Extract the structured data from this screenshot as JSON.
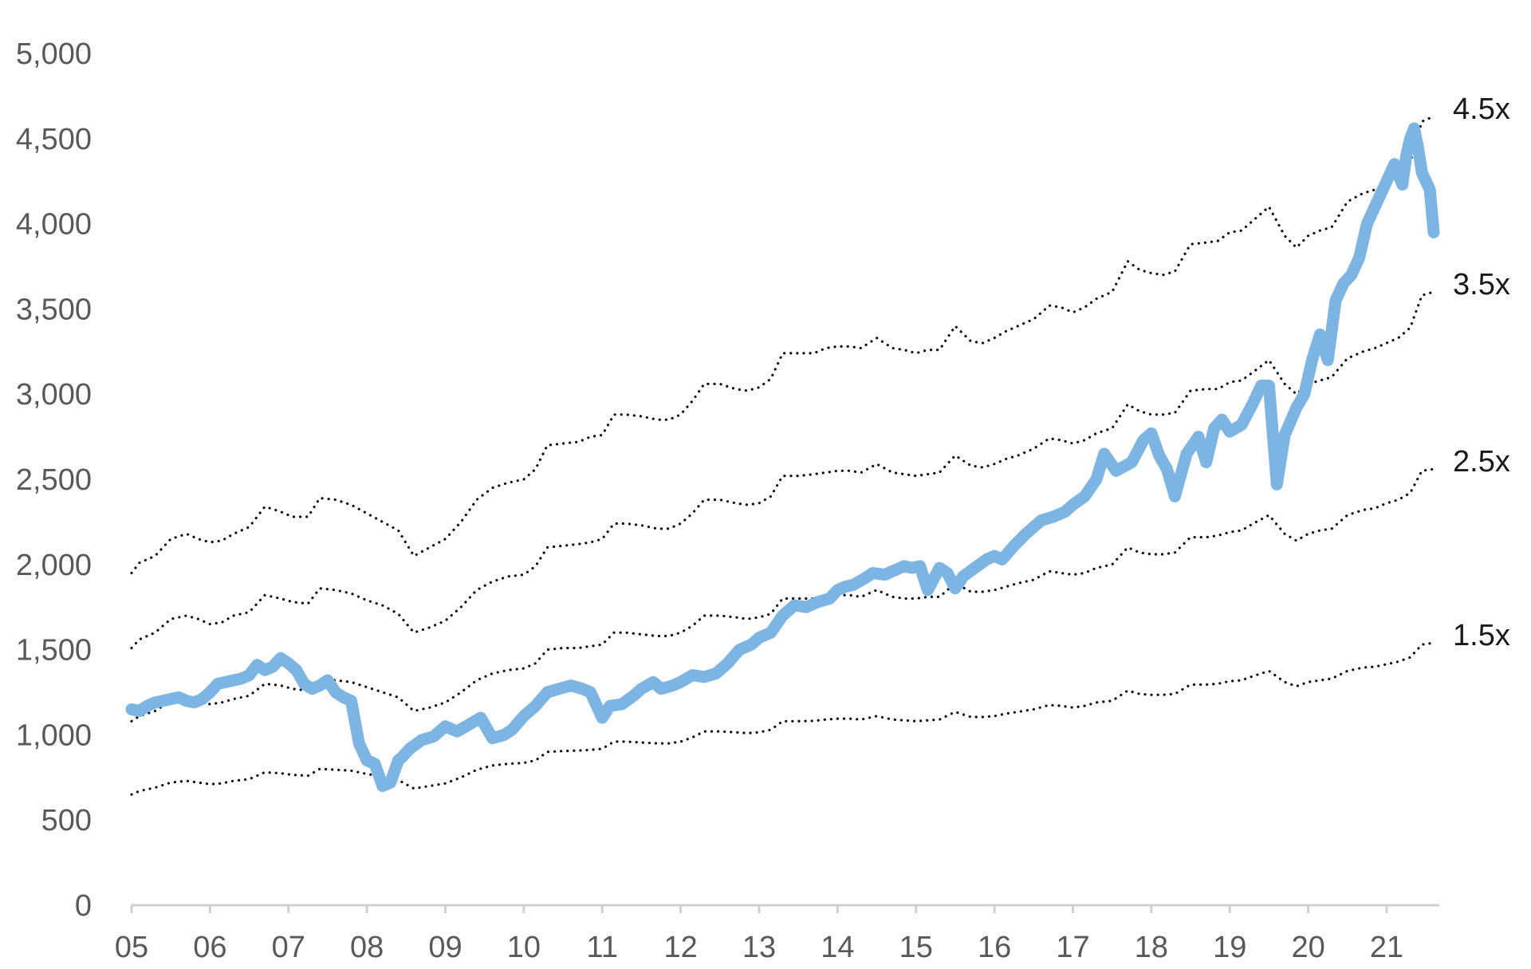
{
  "chart_data": {
    "type": "line",
    "title": "",
    "xlabel": "",
    "ylabel": "",
    "xlim": [
      2005.0,
      2021.6
    ],
    "ylim": [
      0,
      5000
    ],
    "y_ticks": [
      "0",
      "500",
      "1,000",
      "1,500",
      "2,000",
      "2,500",
      "3,000",
      "3,500",
      "4,000",
      "4,500",
      "5,000"
    ],
    "y_tick_values": [
      0,
      500,
      1000,
      1500,
      2000,
      2500,
      3000,
      3500,
      4000,
      4500,
      5000
    ],
    "x_ticks": [
      "05",
      "06",
      "07",
      "08",
      "09",
      "10",
      "11",
      "12",
      "13",
      "14",
      "15",
      "16",
      "17",
      "18",
      "19",
      "20",
      "21"
    ],
    "x_tick_values": [
      2005,
      2006,
      2007,
      2008,
      2009,
      2010,
      2011,
      2012,
      2013,
      2014,
      2015,
      2016,
      2017,
      2018,
      2019,
      2020,
      2021
    ],
    "grid": false,
    "colors": {
      "main": "#7cb5e3",
      "bands": "#111111",
      "axis": "#d0d0d0"
    },
    "main_series": {
      "x": [
        2005.0,
        2005.1,
        2005.2,
        2005.3,
        2005.4,
        2005.5,
        2005.6,
        2005.7,
        2005.8,
        2005.9,
        2006.0,
        2006.1,
        2006.2,
        2006.3,
        2006.4,
        2006.5,
        2006.6,
        2006.7,
        2006.8,
        2006.9,
        2007.0,
        2007.1,
        2007.2,
        2007.3,
        2007.4,
        2007.5,
        2007.6,
        2007.7,
        2007.8,
        2007.9,
        2008.0,
        2008.1,
        2008.2,
        2008.3,
        2008.4,
        2008.45,
        2008.55,
        2008.7,
        2008.85,
        2009.0,
        2009.15,
        2009.3,
        2009.45,
        2009.6,
        2009.75,
        2009.85,
        2010.0,
        2010.15,
        2010.3,
        2010.45,
        2010.6,
        2010.75,
        2010.85,
        2011.0,
        2011.1,
        2011.25,
        2011.4,
        2011.5,
        2011.65,
        2011.75,
        2011.9,
        2012.0,
        2012.15,
        2012.3,
        2012.45,
        2012.6,
        2012.75,
        2012.9,
        2013.0,
        2013.15,
        2013.3,
        2013.45,
        2013.6,
        2013.75,
        2013.9,
        2014.0,
        2014.1,
        2014.2,
        2014.35,
        2014.45,
        2014.6,
        2014.7,
        2014.85,
        2014.95,
        2015.05,
        2015.15,
        2015.3,
        2015.4,
        2015.5,
        2015.6,
        2015.75,
        2015.9,
        2016.0,
        2016.1,
        2016.25,
        2016.4,
        2016.6,
        2016.75,
        2016.9,
        2017.0,
        2017.15,
        2017.3,
        2017.4,
        2017.55,
        2017.75,
        2017.9,
        2018.0,
        2018.1,
        2018.2,
        2018.3,
        2018.45,
        2018.6,
        2018.7,
        2018.8,
        2018.9,
        2019.0,
        2019.15,
        2019.3,
        2019.4,
        2019.5,
        2019.6,
        2019.7,
        2019.85,
        2019.95,
        2020.05,
        2020.15,
        2020.25,
        2020.35,
        2020.45,
        2020.55,
        2020.65,
        2020.75,
        2020.85,
        2020.95,
        2021.05,
        2021.1,
        2021.2,
        2021.25,
        2021.3,
        2021.35,
        2021.4,
        2021.45,
        2021.5,
        2021.55,
        2021.6
      ],
      "y": [
        1150,
        1140,
        1170,
        1190,
        1200,
        1210,
        1220,
        1200,
        1190,
        1210,
        1250,
        1300,
        1310,
        1320,
        1330,
        1350,
        1410,
        1380,
        1400,
        1450,
        1420,
        1380,
        1300,
        1270,
        1290,
        1320,
        1250,
        1220,
        1200,
        950,
        850,
        830,
        700,
        720,
        850,
        870,
        920,
        970,
        990,
        1050,
        1020,
        1060,
        1100,
        980,
        1000,
        1030,
        1110,
        1170,
        1250,
        1270,
        1290,
        1270,
        1250,
        1100,
        1170,
        1180,
        1230,
        1270,
        1310,
        1270,
        1290,
        1310,
        1350,
        1340,
        1360,
        1420,
        1500,
        1530,
        1570,
        1600,
        1700,
        1760,
        1750,
        1780,
        1800,
        1850,
        1870,
        1880,
        1920,
        1950,
        1940,
        1960,
        1990,
        1980,
        1990,
        1850,
        1980,
        1950,
        1860,
        1930,
        1980,
        2030,
        2050,
        2030,
        2110,
        2180,
        2260,
        2280,
        2310,
        2350,
        2400,
        2500,
        2650,
        2550,
        2600,
        2730,
        2770,
        2640,
        2560,
        2400,
        2650,
        2750,
        2600,
        2800,
        2850,
        2780,
        2820,
        2950,
        3050,
        3050,
        2470,
        2760,
        2920,
        3000,
        3200,
        3350,
        3200,
        3550,
        3650,
        3700,
        3800,
        4000,
        4100,
        4200,
        4300,
        4350,
        4230,
        4400,
        4500,
        4560,
        4450,
        4300,
        4250,
        4200,
        3950
      ]
    },
    "bands": [
      {
        "label": "4.5x",
        "x": [
          2005.0,
          2005.1,
          2005.3,
          2005.5,
          2005.7,
          2005.85,
          2006.0,
          2006.15,
          2006.3,
          2006.5,
          2006.7,
          2006.9,
          2007.05,
          2007.25,
          2007.4,
          2007.6,
          2007.8,
          2008.0,
          2008.2,
          2008.4,
          2008.6,
          2008.8,
          2009.0,
          2009.2,
          2009.4,
          2009.6,
          2009.8,
          2010.0,
          2010.15,
          2010.3,
          2010.5,
          2010.7,
          2010.85,
          2011.0,
          2011.15,
          2011.3,
          2011.5,
          2011.7,
          2011.85,
          2012.0,
          2012.15,
          2012.3,
          2012.5,
          2012.7,
          2012.85,
          2013.0,
          2013.15,
          2013.3,
          2013.5,
          2013.7,
          2013.85,
          2014.0,
          2014.15,
          2014.3,
          2014.5,
          2014.7,
          2014.85,
          2015.0,
          2015.15,
          2015.3,
          2015.5,
          2015.7,
          2015.85,
          2016.0,
          2016.15,
          2016.3,
          2016.5,
          2016.7,
          2016.85,
          2017.0,
          2017.15,
          2017.3,
          2017.5,
          2017.7,
          2017.85,
          2018.0,
          2018.15,
          2018.3,
          2018.5,
          2018.7,
          2018.85,
          2019.0,
          2019.15,
          2019.3,
          2019.5,
          2019.7,
          2019.85,
          2020.0,
          2020.15,
          2020.3,
          2020.5,
          2020.7,
          2020.85,
          2021.0,
          2021.15,
          2021.3,
          2021.45,
          2021.6
        ],
        "y": [
          1950,
          2010,
          2050,
          2150,
          2180,
          2150,
          2130,
          2140,
          2180,
          2220,
          2340,
          2310,
          2280,
          2280,
          2390,
          2380,
          2350,
          2300,
          2250,
          2200,
          2050,
          2100,
          2150,
          2250,
          2380,
          2450,
          2480,
          2500,
          2560,
          2700,
          2710,
          2720,
          2750,
          2760,
          2880,
          2880,
          2870,
          2850,
          2850,
          2880,
          2960,
          3060,
          3060,
          3030,
          3020,
          3040,
          3090,
          3240,
          3240,
          3240,
          3270,
          3280,
          3280,
          3270,
          3330,
          3270,
          3260,
          3240,
          3260,
          3260,
          3400,
          3310,
          3300,
          3330,
          3370,
          3400,
          3440,
          3520,
          3510,
          3480,
          3510,
          3560,
          3600,
          3780,
          3730,
          3710,
          3700,
          3720,
          3880,
          3890,
          3900,
          3950,
          3960,
          4020,
          4100,
          3930,
          3860,
          3930,
          3960,
          3980,
          4130,
          4180,
          4200,
          4240,
          4280,
          4360,
          4600,
          4630
        ]
      },
      {
        "label": "3.5x",
        "x": [
          2005.0,
          2005.1,
          2005.3,
          2005.5,
          2005.7,
          2005.85,
          2006.0,
          2006.15,
          2006.3,
          2006.5,
          2006.7,
          2006.9,
          2007.05,
          2007.25,
          2007.4,
          2007.6,
          2007.8,
          2008.0,
          2008.2,
          2008.4,
          2008.6,
          2008.8,
          2009.0,
          2009.2,
          2009.4,
          2009.6,
          2009.8,
          2010.0,
          2010.15,
          2010.3,
          2010.5,
          2010.7,
          2010.85,
          2011.0,
          2011.15,
          2011.3,
          2011.5,
          2011.7,
          2011.85,
          2012.0,
          2012.15,
          2012.3,
          2012.5,
          2012.7,
          2012.85,
          2013.0,
          2013.15,
          2013.3,
          2013.5,
          2013.7,
          2013.85,
          2014.0,
          2014.15,
          2014.3,
          2014.5,
          2014.7,
          2014.85,
          2015.0,
          2015.15,
          2015.3,
          2015.5,
          2015.7,
          2015.85,
          2016.0,
          2016.15,
          2016.3,
          2016.5,
          2016.7,
          2016.85,
          2017.0,
          2017.15,
          2017.3,
          2017.5,
          2017.7,
          2017.85,
          2018.0,
          2018.15,
          2018.3,
          2018.5,
          2018.7,
          2018.85,
          2019.0,
          2019.15,
          2019.3,
          2019.5,
          2019.7,
          2019.85,
          2020.0,
          2020.15,
          2020.3,
          2020.5,
          2020.7,
          2020.85,
          2021.0,
          2021.15,
          2021.3,
          2021.45,
          2021.6
        ],
        "y": [
          1510,
          1560,
          1600,
          1680,
          1700,
          1680,
          1650,
          1660,
          1700,
          1720,
          1820,
          1800,
          1780,
          1770,
          1860,
          1850,
          1830,
          1790,
          1760,
          1710,
          1600,
          1630,
          1670,
          1750,
          1850,
          1900,
          1930,
          1940,
          1990,
          2100,
          2110,
          2120,
          2130,
          2150,
          2240,
          2240,
          2230,
          2210,
          2210,
          2240,
          2300,
          2380,
          2380,
          2360,
          2350,
          2360,
          2400,
          2520,
          2520,
          2530,
          2540,
          2550,
          2550,
          2540,
          2590,
          2540,
          2530,
          2520,
          2530,
          2540,
          2640,
          2580,
          2570,
          2590,
          2620,
          2640,
          2680,
          2740,
          2730,
          2710,
          2730,
          2770,
          2800,
          2940,
          2900,
          2880,
          2880,
          2890,
          3020,
          3030,
          3030,
          3070,
          3080,
          3130,
          3200,
          3060,
          3000,
          3060,
          3080,
          3100,
          3210,
          3250,
          3270,
          3300,
          3330,
          3390,
          3580,
          3600
        ]
      },
      {
        "label": "2.5x",
        "x": [
          2005.0,
          2005.1,
          2005.3,
          2005.5,
          2005.7,
          2005.85,
          2006.0,
          2006.15,
          2006.3,
          2006.5,
          2006.7,
          2006.9,
          2007.05,
          2007.25,
          2007.4,
          2007.6,
          2007.8,
          2008.0,
          2008.2,
          2008.4,
          2008.6,
          2008.8,
          2009.0,
          2009.2,
          2009.4,
          2009.6,
          2009.8,
          2010.0,
          2010.15,
          2010.3,
          2010.5,
          2010.7,
          2010.85,
          2011.0,
          2011.15,
          2011.3,
          2011.5,
          2011.7,
          2011.85,
          2012.0,
          2012.15,
          2012.3,
          2012.5,
          2012.7,
          2012.85,
          2013.0,
          2013.15,
          2013.3,
          2013.5,
          2013.7,
          2013.85,
          2014.0,
          2014.15,
          2014.3,
          2014.5,
          2014.7,
          2014.85,
          2015.0,
          2015.15,
          2015.3,
          2015.5,
          2015.7,
          2015.85,
          2016.0,
          2016.15,
          2016.3,
          2016.5,
          2016.7,
          2016.85,
          2017.0,
          2017.15,
          2017.3,
          2017.5,
          2017.7,
          2017.85,
          2018.0,
          2018.15,
          2018.3,
          2018.5,
          2018.7,
          2018.85,
          2019.0,
          2019.15,
          2019.3,
          2019.5,
          2019.7,
          2019.85,
          2020.0,
          2020.15,
          2020.3,
          2020.5,
          2020.7,
          2020.85,
          2021.0,
          2021.15,
          2021.3,
          2021.45,
          2021.6
        ],
        "y": [
          1080,
          1110,
          1140,
          1200,
          1210,
          1200,
          1180,
          1190,
          1210,
          1230,
          1300,
          1290,
          1270,
          1260,
          1330,
          1320,
          1310,
          1280,
          1250,
          1220,
          1140,
          1160,
          1190,
          1250,
          1320,
          1360,
          1380,
          1390,
          1420,
          1500,
          1510,
          1510,
          1520,
          1530,
          1600,
          1600,
          1590,
          1580,
          1580,
          1600,
          1640,
          1700,
          1700,
          1690,
          1680,
          1690,
          1710,
          1800,
          1800,
          1800,
          1810,
          1820,
          1820,
          1810,
          1850,
          1810,
          1800,
          1800,
          1810,
          1810,
          1890,
          1840,
          1840,
          1850,
          1870,
          1890,
          1910,
          1960,
          1950,
          1940,
          1950,
          1980,
          2000,
          2100,
          2070,
          2060,
          2060,
          2070,
          2160,
          2160,
          2170,
          2190,
          2200,
          2240,
          2290,
          2180,
          2140,
          2180,
          2200,
          2210,
          2290,
          2320,
          2330,
          2360,
          2380,
          2420,
          2550,
          2560
        ]
      },
      {
        "label": "1.5x",
        "x": [
          2005.0,
          2005.1,
          2005.3,
          2005.5,
          2005.7,
          2005.85,
          2006.0,
          2006.15,
          2006.3,
          2006.5,
          2006.7,
          2006.9,
          2007.05,
          2007.25,
          2007.4,
          2007.6,
          2007.8,
          2008.0,
          2008.2,
          2008.4,
          2008.6,
          2008.8,
          2009.0,
          2009.2,
          2009.4,
          2009.6,
          2009.8,
          2010.0,
          2010.15,
          2010.3,
          2010.5,
          2010.7,
          2010.85,
          2011.0,
          2011.15,
          2011.3,
          2011.5,
          2011.7,
          2011.85,
          2012.0,
          2012.15,
          2012.3,
          2012.5,
          2012.7,
          2012.85,
          2013.0,
          2013.15,
          2013.3,
          2013.5,
          2013.7,
          2013.85,
          2014.0,
          2014.15,
          2014.3,
          2014.5,
          2014.7,
          2014.85,
          2015.0,
          2015.15,
          2015.3,
          2015.5,
          2015.7,
          2015.85,
          2016.0,
          2016.15,
          2016.3,
          2016.5,
          2016.7,
          2016.85,
          2017.0,
          2017.15,
          2017.3,
          2017.5,
          2017.7,
          2017.85,
          2018.0,
          2018.15,
          2018.3,
          2018.5,
          2018.7,
          2018.85,
          2019.0,
          2019.15,
          2019.3,
          2019.5,
          2019.7,
          2019.85,
          2020.0,
          2020.15,
          2020.3,
          2020.5,
          2020.7,
          2020.85,
          2021.0,
          2021.15,
          2021.3,
          2021.45,
          2021.6
        ],
        "y": [
          650,
          670,
          690,
          720,
          730,
          720,
          710,
          715,
          730,
          740,
          780,
          775,
          765,
          760,
          800,
          795,
          790,
          770,
          755,
          735,
          685,
          700,
          715,
          750,
          795,
          820,
          830,
          835,
          850,
          900,
          905,
          908,
          912,
          918,
          960,
          960,
          955,
          950,
          950,
          960,
          985,
          1020,
          1020,
          1015,
          1010,
          1015,
          1030,
          1080,
          1080,
          1082,
          1090,
          1095,
          1095,
          1090,
          1110,
          1090,
          1085,
          1080,
          1085,
          1090,
          1135,
          1105,
          1105,
          1110,
          1125,
          1135,
          1150,
          1175,
          1170,
          1160,
          1170,
          1190,
          1200,
          1260,
          1240,
          1235,
          1235,
          1240,
          1295,
          1295,
          1300,
          1315,
          1320,
          1345,
          1375,
          1310,
          1285,
          1310,
          1320,
          1330,
          1375,
          1395,
          1400,
          1415,
          1430,
          1455,
          1530,
          1540
        ]
      }
    ]
  }
}
